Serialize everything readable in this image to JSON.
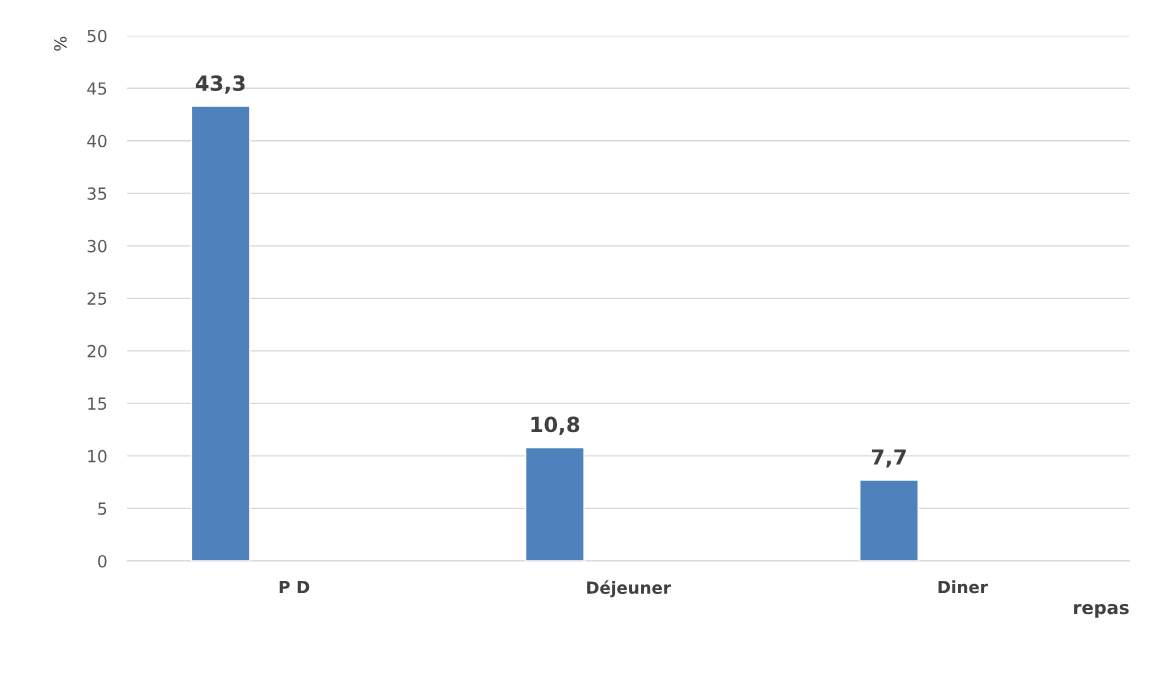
{
  "chart_data": {
    "type": "bar",
    "ylabel": "%",
    "xlabel": "repas",
    "categories": [
      "P D",
      "Déjeuner",
      "Diner"
    ],
    "series": [
      {
        "color": "#4f81bd",
        "values": [
          43.3,
          10.8,
          7.7
        ]
      }
    ],
    "value_labels": [
      "43,3",
      "10,8",
      "7,7"
    ],
    "ylim": [
      0,
      50
    ],
    "yticks": [
      0,
      5,
      10,
      15,
      20,
      25,
      30,
      35,
      40,
      45,
      50
    ],
    "grid": "y",
    "legend": false
  }
}
